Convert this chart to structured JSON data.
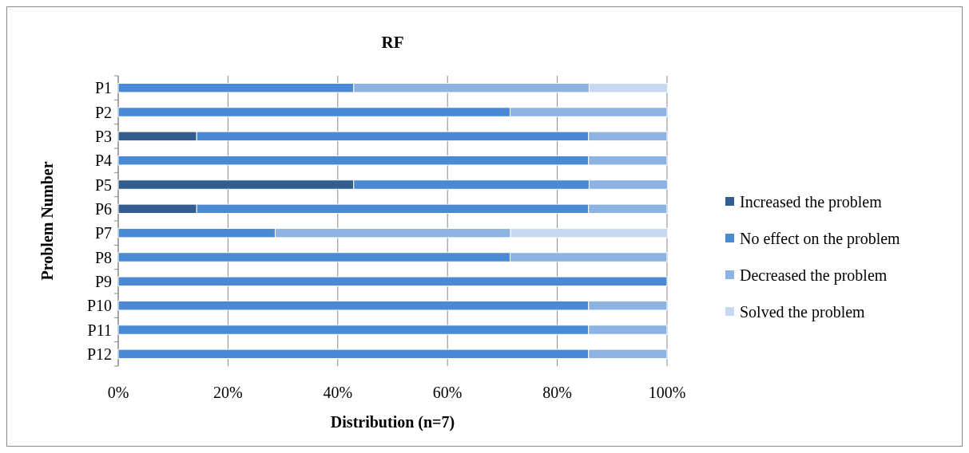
{
  "chart_data": {
    "type": "bar",
    "title": "RF",
    "xlabel": "Distribution (n=7)",
    "ylabel": "Problem Number",
    "orientation": "horizontal",
    "stacked": true,
    "categories": [
      "P1",
      "P2",
      "P3",
      "P4",
      "P5",
      "P6",
      "P7",
      "P8",
      "P9",
      "P10",
      "P11",
      "P12"
    ],
    "series": [
      {
        "name": "Increased the problem",
        "color": "#335d8e",
        "values": [
          0,
          0,
          14.3,
          0,
          42.9,
          14.3,
          0,
          0,
          0,
          0,
          0,
          0
        ]
      },
      {
        "name": "No effect on the problem",
        "color": "#4a8ad4",
        "values": [
          42.9,
          71.4,
          71.4,
          85.7,
          42.9,
          71.4,
          28.6,
          71.4,
          100,
          85.7,
          85.7,
          85.7
        ]
      },
      {
        "name": "Decreased the problem",
        "color": "#8db3e2",
        "values": [
          42.9,
          28.6,
          14.3,
          14.3,
          14.3,
          14.3,
          42.9,
          28.6,
          0,
          14.3,
          14.3,
          14.3
        ]
      },
      {
        "name": "Solved the problem",
        "color": "#c6d9f1",
        "values": [
          14.3,
          0,
          0,
          0,
          0,
          0,
          28.6,
          0,
          0,
          0,
          0,
          0
        ]
      }
    ],
    "xlim": [
      0,
      100
    ],
    "xticks": [
      {
        "value": 0,
        "label": "0%"
      },
      {
        "value": 20,
        "label": "20%"
      },
      {
        "value": 40,
        "label": "40%"
      },
      {
        "value": 60,
        "label": "60%"
      },
      {
        "value": 80,
        "label": "80%"
      },
      {
        "value": 100,
        "label": "100%"
      }
    ],
    "grid": "x",
    "legend": "right"
  }
}
